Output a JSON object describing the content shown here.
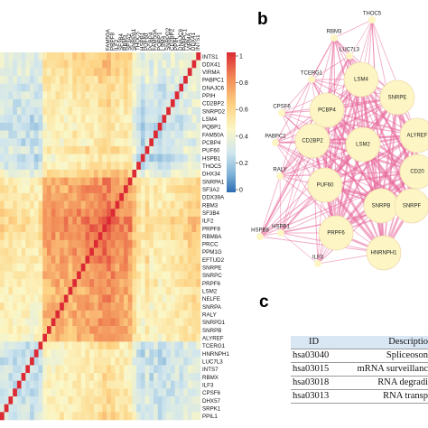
{
  "figure": {
    "panels": [
      {
        "letter": "b"
      },
      {
        "letter": "c"
      }
    ]
  },
  "chart_data": [
    {
      "type": "heatmap",
      "title": "",
      "xlabel": "",
      "ylabel": "",
      "x_tick_labels": [
        "FAM50A",
        "PRPF8",
        "ILF2",
        "SF3B4",
        "RBM3",
        "SF3A2",
        "SNRPA1",
        "THOC5",
        "HSPB1",
        "PUF60",
        "PCBP4",
        "FAM50A",
        "PQBP1",
        "LSM4",
        "SNRPD2",
        "CD2BP2",
        "PPIH",
        "DNAJC6",
        "PABPC1",
        "VIRMA",
        "DDX41",
        "INTS1"
      ],
      "y_labels": [
        "INTS1",
        "DDX41",
        "VIRMA",
        "PABPC1",
        "DNAJC6",
        "PPIH",
        "CD2BP2",
        "SNRPD2",
        "LSM4",
        "PQBP1",
        "FAM50A",
        "PCBP4",
        "PUF60",
        "HSPB1",
        "THOC5",
        "DHX34",
        "SNRPA1",
        "SF3A2",
        "DDX39A",
        "RBM3",
        "SF3B4",
        "ILF2",
        "PRPF8",
        "RBM8A",
        "PRCC",
        "PPM1G",
        "EFTUD2",
        "SNRPE",
        "SNRPC",
        "PRPF6",
        "LSM2",
        "NELFE",
        "SNRPA",
        "RALY",
        "SNRPD1",
        "SNRPB",
        "ALYREF",
        "TCERG1",
        "HNRNPH1",
        "LUC7L3",
        "INTS7",
        "RBMX",
        "ILF3",
        "CPSF6",
        "DHX57",
        "SRPK1",
        "PPIL1"
      ],
      "colorbar": {
        "min": 0,
        "max": 1,
        "ticks": [
          "1",
          "0.8",
          "0.6",
          "0.4",
          "0.2",
          "0"
        ]
      },
      "colorscale": [
        "#2b6cb4",
        "#7fb3d8",
        "#cfe5ee",
        "#fbf7c6",
        "#fdd384",
        "#f18a56",
        "#dc2a34"
      ],
      "values": "symmetric correlation matrix (47×47), diagonal = 1; per-gene values estimated from cell colours",
      "gene_effect": {
        "PRPF8": 0.4,
        "ILF2": 0.4,
        "SF3B4": 0.36,
        "RBM3": 0.3,
        "SF3A2": 0.28,
        "SNRPA1": 0.25,
        "DDX39A": 0.26,
        "RBM8A": 0.34,
        "PRCC": 0.3,
        "PPM1G": 0.3,
        "EFTUD2": 0.3,
        "SNRPE": 0.27,
        "SNRPC": 0.25,
        "PRPF6": 0.27,
        "LSM2": 0.22,
        "NELFE": 0.22,
        "SNRPA": 0.22,
        "RALY": 0.22,
        "SNRPD1": 0.22,
        "SNRPB": 0.22,
        "ALYREF": 0.2,
        "THOC5": -0.1,
        "HSPB1": -0.2,
        "PUF60": -0.05,
        "PCBP4": -0.18,
        "FAM50A": -0.12,
        "PQBP1": -0.18,
        "LSM4": -0.16,
        "SNRPD2": -0.12,
        "CD2BP2": -0.1,
        "PPIH": -0.08,
        "DNAJC6": -0.08,
        "PABPC1": -0.05,
        "VIRMA": 0.0,
        "DDX41": 0.02,
        "INTS1": 0.0,
        "DHX34": 0.05,
        "TCERG1": -0.12,
        "HNRNPH1": -0.18,
        "LUC7L3": -0.18,
        "INTS7": -0.15,
        "RBMX": -0.15,
        "ILF3": -0.15,
        "CPSF6": -0.15,
        "DHX57": -0.12,
        "SRPK1": -0.12,
        "PPIL1": -0.08
      },
      "base": 0.48
    },
    {
      "type": "network",
      "panel": "b",
      "nodes": [
        "THOC5",
        "RBM3",
        "LUC7L3",
        "TCERG1",
        "LSM4",
        "SNRPE",
        "CPSF6",
        "PCBP4",
        "ALYREF",
        "PABPC1",
        "CD2BP2",
        "LSM2",
        "CD20",
        "RALY",
        "PUF60",
        "SNRPB",
        "HSPB1",
        "PRPF6",
        "SNRPF",
        "HNRNPH1",
        "ILF3",
        "HSPB8"
      ],
      "edge_color": "#e8679a",
      "node_color": "#fdf6c4"
    }
  ],
  "table": {
    "headers": {
      "id": "ID",
      "description": "Descriptio"
    },
    "rows": [
      {
        "id": "hsa03040",
        "description": "Spliceoson"
      },
      {
        "id": "hsa03015",
        "description": "mRNA surveillanc"
      },
      {
        "id": "hsa03018",
        "description": "RNA degradi"
      },
      {
        "id": "hsa03013",
        "description": "RNA transp"
      }
    ]
  }
}
